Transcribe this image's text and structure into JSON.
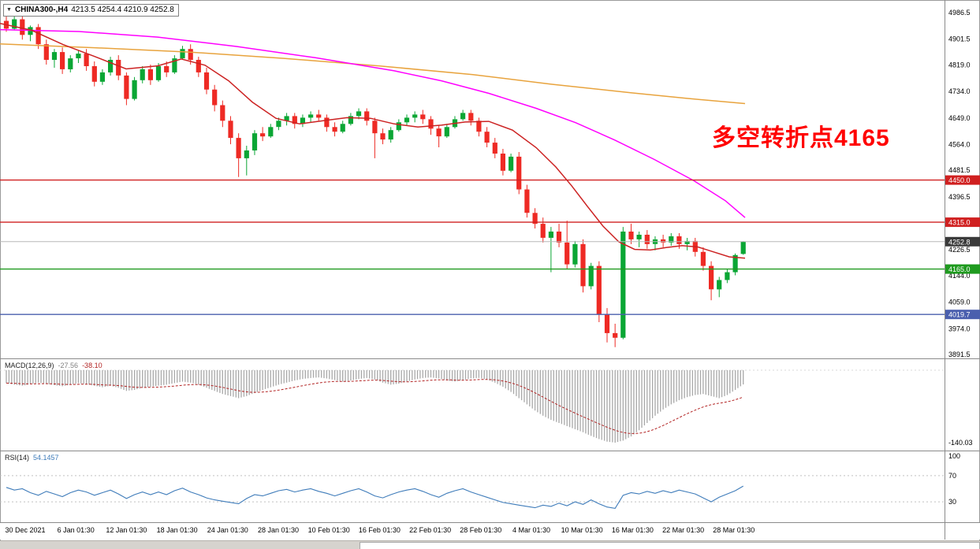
{
  "header": {
    "symbol": "CHINA300-,H4",
    "ohlc": "4213.5 4254.4 4210.9 4252.8"
  },
  "annotation": {
    "text": "多空转折点4165"
  },
  "colors": {
    "up": "#0aa634",
    "down": "#ee2a24",
    "histogram": "#a8a8a8",
    "signal": "#b22222",
    "rsi_line": "#3f7cba",
    "current_tag": "#3a3a3a",
    "annotation": "#ff0000"
  },
  "chart_data": {
    "type": "candlestick",
    "symbol": "CHINA300-",
    "timeframe": "H4",
    "last_ohlc": {
      "open": 4213.5,
      "high": 4254.4,
      "low": 4210.9,
      "close": 4252.8
    },
    "price_axis": {
      "max": 4986.5,
      "min": 3891.5,
      "ticks": [
        "4986.5",
        "4901.5",
        "4819.0",
        "4734.0",
        "4649.0",
        "4564.0",
        "4481.5",
        "4396.5",
        "4311.5",
        "4226.5",
        "4144.0",
        "4059.0",
        "3974.0",
        "3891.5"
      ]
    },
    "x_axis": {
      "labels": [
        "30 Dec 2021",
        "6 Jan 01:30",
        "12 Jan 01:30",
        "18 Jan 01:30",
        "24 Jan 01:30",
        "28 Jan 01:30",
        "10 Feb 01:30",
        "16 Feb 01:30",
        "22 Feb 01:30",
        "28 Feb 01:30",
        "4 Mar 01:30",
        "10 Mar 01:30",
        "16 Mar 01:30",
        "22 Mar 01:30",
        "28 Mar 01:30"
      ]
    },
    "candles": [
      [
        4960,
        4985,
        4925,
        4935
      ],
      [
        4935,
        4975,
        4930,
        4965
      ],
      [
        4965,
        4975,
        4900,
        4915
      ],
      [
        4915,
        4945,
        4895,
        4940
      ],
      [
        4940,
        4950,
        4870,
        4885
      ],
      [
        4885,
        4900,
        4820,
        4835
      ],
      [
        4835,
        4870,
        4810,
        4860
      ],
      [
        4860,
        4875,
        4790,
        4805
      ],
      [
        4805,
        4850,
        4795,
        4840
      ],
      [
        4840,
        4865,
        4825,
        4855
      ],
      [
        4855,
        4870,
        4800,
        4815
      ],
      [
        4815,
        4830,
        4750,
        4765
      ],
      [
        4765,
        4805,
        4755,
        4795
      ],
      [
        4795,
        4845,
        4785,
        4835
      ],
      [
        4835,
        4850,
        4770,
        4785
      ],
      [
        4785,
        4795,
        4690,
        4710
      ],
      [
        4710,
        4780,
        4705,
        4770
      ],
      [
        4770,
        4815,
        4760,
        4805
      ],
      [
        4805,
        4820,
        4755,
        4770
      ],
      [
        4770,
        4825,
        4765,
        4815
      ],
      [
        4815,
        4830,
        4780,
        4795
      ],
      [
        4795,
        4850,
        4790,
        4840
      ],
      [
        4840,
        4880,
        4835,
        4870
      ],
      [
        4870,
        4885,
        4820,
        4835
      ],
      [
        4835,
        4845,
        4780,
        4795
      ],
      [
        4795,
        4810,
        4725,
        4740
      ],
      [
        4740,
        4755,
        4670,
        4690
      ],
      [
        4690,
        4705,
        4620,
        4640
      ],
      [
        4640,
        4655,
        4565,
        4585
      ],
      [
        4585,
        4600,
        4460,
        4520
      ],
      [
        4520,
        4560,
        4465,
        4545
      ],
      [
        4545,
        4610,
        4530,
        4600
      ],
      [
        4600,
        4620,
        4575,
        4590
      ],
      [
        4590,
        4630,
        4585,
        4620
      ],
      [
        4620,
        4650,
        4610,
        4640
      ],
      [
        4640,
        4665,
        4625,
        4655
      ],
      [
        4655,
        4665,
        4615,
        4630
      ],
      [
        4630,
        4660,
        4620,
        4650
      ],
      [
        4650,
        4670,
        4635,
        4660
      ],
      [
        4660,
        4675,
        4640,
        4650
      ],
      [
        4650,
        4660,
        4605,
        4620
      ],
      [
        4620,
        4635,
        4590,
        4605
      ],
      [
        4605,
        4640,
        4600,
        4630
      ],
      [
        4630,
        4665,
        4625,
        4655
      ],
      [
        4655,
        4680,
        4645,
        4670
      ],
      [
        4670,
        4680,
        4625,
        4640
      ],
      [
        4640,
        4650,
        4520,
        4600
      ],
      [
        4600,
        4615,
        4565,
        4580
      ],
      [
        4580,
        4620,
        4570,
        4610
      ],
      [
        4610,
        4645,
        4605,
        4635
      ],
      [
        4635,
        4660,
        4625,
        4650
      ],
      [
        4650,
        4670,
        4635,
        4660
      ],
      [
        4660,
        4675,
        4630,
        4645
      ],
      [
        4645,
        4655,
        4595,
        4615
      ],
      [
        4615,
        4625,
        4555,
        4590
      ],
      [
        4590,
        4630,
        4585,
        4620
      ],
      [
        4620,
        4655,
        4615,
        4645
      ],
      [
        4645,
        4675,
        4640,
        4665
      ],
      [
        4665,
        4675,
        4625,
        4640
      ],
      [
        4640,
        4650,
        4590,
        4605
      ],
      [
        4605,
        4620,
        4555,
        4570
      ],
      [
        4570,
        4585,
        4520,
        4535
      ],
      [
        4535,
        4550,
        4465,
        4480
      ],
      [
        4480,
        4535,
        4475,
        4525
      ],
      [
        4525,
        4540,
        4405,
        4420
      ],
      [
        4420,
        4435,
        4330,
        4345
      ],
      [
        4345,
        4360,
        4295,
        4310
      ],
      [
        4310,
        4330,
        4250,
        4265
      ],
      [
        4265,
        4300,
        4155,
        4285
      ],
      [
        4285,
        4310,
        4235,
        4250
      ],
      [
        4250,
        4320,
        4165,
        4180
      ],
      [
        4180,
        4255,
        4170,
        4245
      ],
      [
        4245,
        4260,
        4090,
        4110
      ],
      [
        4110,
        4185,
        4100,
        4175
      ],
      [
        4175,
        4190,
        3995,
        4020
      ],
      [
        4020,
        4040,
        3930,
        3960
      ],
      [
        3960,
        3990,
        3915,
        3945
      ],
      [
        3945,
        4300,
        3940,
        4285
      ],
      [
        4285,
        4310,
        4245,
        4260
      ],
      [
        4260,
        4285,
        4235,
        4275
      ],
      [
        4275,
        4290,
        4230,
        4245
      ],
      [
        4245,
        4270,
        4225,
        4260
      ],
      [
        4260,
        4275,
        4235,
        4250
      ],
      [
        4250,
        4280,
        4240,
        4270
      ],
      [
        4270,
        4280,
        4230,
        4245
      ],
      [
        4245,
        4265,
        4225,
        4255
      ],
      [
        4255,
        4265,
        4205,
        4220
      ],
      [
        4220,
        4235,
        4160,
        4175
      ],
      [
        4175,
        4190,
        4065,
        4100
      ],
      [
        4100,
        4140,
        4075,
        4130
      ],
      [
        4130,
        4165,
        4120,
        4155
      ],
      [
        4155,
        4215,
        4145,
        4210
      ],
      [
        4213.5,
        4254.4,
        4210.9,
        4252.8
      ]
    ],
    "levels": [
      {
        "price": 4450.0,
        "label": "4450.0",
        "color": "#d02020"
      },
      {
        "price": 4315.0,
        "label": "4315.0",
        "color": "#d02020"
      },
      {
        "price": 4165.0,
        "label": "4165.0",
        "color": "#1f9a1f"
      },
      {
        "price": 4019.7,
        "label": "4019.7",
        "color": "#4a5fae"
      }
    ],
    "current_price": {
      "value": 4252.8,
      "label": "4252.8"
    },
    "moving_averages": [
      {
        "name": "ma-slow-orange",
        "color": "#e8a33d",
        "points": [
          [
            0,
            4886
          ],
          [
            120,
            4874
          ],
          [
            240,
            4860
          ],
          [
            360,
            4840
          ],
          [
            480,
            4816
          ],
          [
            600,
            4788
          ],
          [
            700,
            4757
          ],
          [
            800,
            4730
          ],
          [
            870,
            4712
          ],
          [
            945,
            4695
          ]
        ]
      },
      {
        "name": "ma-mid-magenta",
        "color": "#ff00ff",
        "points": [
          [
            0,
            4932
          ],
          [
            100,
            4926
          ],
          [
            200,
            4908
          ],
          [
            300,
            4878
          ],
          [
            400,
            4842
          ],
          [
            500,
            4800
          ],
          [
            560,
            4768
          ],
          [
            620,
            4728
          ],
          [
            680,
            4680
          ],
          [
            730,
            4634
          ],
          [
            780,
            4578
          ],
          [
            830,
            4516
          ],
          [
            880,
            4448
          ],
          [
            920,
            4384
          ],
          [
            945,
            4330
          ]
        ]
      },
      {
        "name": "ma-fast-red",
        "color": "#cc2222",
        "points": [
          [
            0,
            4952
          ],
          [
            40,
            4930
          ],
          [
            80,
            4884
          ],
          [
            120,
            4846
          ],
          [
            160,
            4806
          ],
          [
            200,
            4816
          ],
          [
            230,
            4838
          ],
          [
            260,
            4818
          ],
          [
            290,
            4768
          ],
          [
            320,
            4700
          ],
          [
            350,
            4648
          ],
          [
            380,
            4630
          ],
          [
            410,
            4640
          ],
          [
            440,
            4650
          ],
          [
            470,
            4648
          ],
          [
            500,
            4630
          ],
          [
            530,
            4620
          ],
          [
            560,
            4626
          ],
          [
            590,
            4636
          ],
          [
            620,
            4638
          ],
          [
            650,
            4610
          ],
          [
            680,
            4554
          ],
          [
            705,
            4492
          ],
          [
            725,
            4432
          ],
          [
            745,
            4366
          ],
          [
            765,
            4302
          ],
          [
            785,
            4252
          ],
          [
            805,
            4228
          ],
          [
            825,
            4226
          ],
          [
            845,
            4234
          ],
          [
            865,
            4240
          ],
          [
            885,
            4236
          ],
          [
            905,
            4220
          ],
          [
            925,
            4204
          ],
          [
            945,
            4200
          ]
        ]
      }
    ],
    "macd": {
      "label": "MACD(12,26,9)",
      "value_label": "-27.56",
      "signal_label": "-38.10",
      "axis_min": -140.03,
      "axis_min_label": "-140.03",
      "histogram": [
        -25,
        -28,
        -30,
        -27,
        -24,
        -26,
        -29,
        -31,
        -28,
        -25,
        -27,
        -30,
        -33,
        -30,
        -34,
        -40,
        -38,
        -34,
        -32,
        -30,
        -28,
        -25,
        -22,
        -24,
        -28,
        -34,
        -40,
        -46,
        -50,
        -54,
        -50,
        -44,
        -38,
        -33,
        -28,
        -24,
        -20,
        -17,
        -15,
        -14,
        -16,
        -19,
        -22,
        -20,
        -17,
        -15,
        -18,
        -24,
        -28,
        -26,
        -22,
        -18,
        -15,
        -14,
        -16,
        -20,
        -22,
        -19,
        -16,
        -15,
        -18,
        -24,
        -32,
        -42,
        -54,
        -66,
        -78,
        -88,
        -96,
        -102,
        -108,
        -114,
        -120,
        -127,
        -133,
        -138,
        -140,
        -136,
        -128,
        -116,
        -102,
        -88,
        -76,
        -66,
        -58,
        -52,
        -48,
        -46,
        -50,
        -54,
        -48,
        -38,
        -27.56
      ]
    },
    "rsi": {
      "label": "RSI(14)",
      "value_label": "54.1457",
      "levels": [
        100,
        70,
        30
      ],
      "values": [
        52,
        48,
        50,
        44,
        40,
        46,
        42,
        38,
        44,
        48,
        45,
        40,
        44,
        48,
        42,
        35,
        41,
        45,
        41,
        45,
        41,
        47,
        51,
        45,
        41,
        36,
        33,
        31,
        29,
        27,
        35,
        41,
        39,
        43,
        47,
        49,
        45,
        48,
        50,
        46,
        43,
        39,
        43,
        47,
        50,
        45,
        39,
        36,
        41,
        45,
        48,
        50,
        46,
        41,
        37,
        43,
        47,
        50,
        45,
        41,
        37,
        33,
        29,
        27,
        25,
        23,
        21,
        25,
        23,
        28,
        24,
        30,
        26,
        33,
        27,
        22,
        20,
        40,
        44,
        42,
        46,
        43,
        47,
        44,
        48,
        45,
        42,
        36,
        30,
        37,
        42,
        47,
        54.15
      ]
    }
  }
}
